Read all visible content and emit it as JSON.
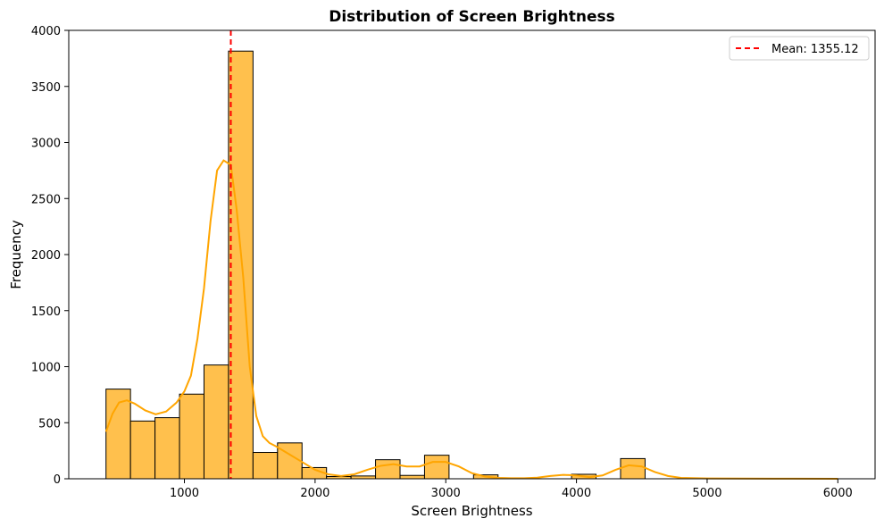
{
  "chart_data": {
    "type": "bar",
    "title": "Distribution of Screen Brightness",
    "xlabel": "Screen Brightness",
    "ylabel": "Frequency",
    "xlim": [
      115,
      6285
    ],
    "ylim": [
      0,
      4000
    ],
    "xticks": [
      1000,
      2000,
      3000,
      4000,
      5000,
      6000
    ],
    "yticks": [
      0,
      500,
      1000,
      1500,
      2000,
      2500,
      3000,
      3500,
      4000
    ],
    "bin_width": 187.5,
    "bins": [
      {
        "x0": 400,
        "value": 800
      },
      {
        "x0": 587.5,
        "value": 515
      },
      {
        "x0": 775,
        "value": 545
      },
      {
        "x0": 962.5,
        "value": 755
      },
      {
        "x0": 1150,
        "value": 1015
      },
      {
        "x0": 1337.5,
        "value": 3815
      },
      {
        "x0": 1525,
        "value": 235
      },
      {
        "x0": 1712.5,
        "value": 320
      },
      {
        "x0": 1900,
        "value": 100
      },
      {
        "x0": 2087.5,
        "value": 20
      },
      {
        "x0": 2275,
        "value": 25
      },
      {
        "x0": 2462.5,
        "value": 170
      },
      {
        "x0": 2650,
        "value": 30
      },
      {
        "x0": 2837.5,
        "value": 210
      },
      {
        "x0": 3025,
        "value": 0
      },
      {
        "x0": 3212.5,
        "value": 35
      },
      {
        "x0": 3400,
        "value": 0
      },
      {
        "x0": 3587.5,
        "value": 0
      },
      {
        "x0": 3775,
        "value": 0
      },
      {
        "x0": 3962.5,
        "value": 40
      },
      {
        "x0": 4150,
        "value": 0
      },
      {
        "x0": 4337.5,
        "value": 180
      }
    ],
    "kde": [
      [
        400,
        420
      ],
      [
        450,
        580
      ],
      [
        500,
        680
      ],
      [
        560,
        700
      ],
      [
        620,
        670
      ],
      [
        700,
        610
      ],
      [
        780,
        575
      ],
      [
        860,
        600
      ],
      [
        940,
        680
      ],
      [
        1000,
        780
      ],
      [
        1050,
        920
      ],
      [
        1100,
        1250
      ],
      [
        1150,
        1700
      ],
      [
        1200,
        2300
      ],
      [
        1250,
        2750
      ],
      [
        1300,
        2840
      ],
      [
        1355,
        2800
      ],
      [
        1400,
        2400
      ],
      [
        1450,
        1800
      ],
      [
        1500,
        1000
      ],
      [
        1550,
        560
      ],
      [
        1600,
        380
      ],
      [
        1650,
        320
      ],
      [
        1700,
        290
      ],
      [
        1800,
        220
      ],
      [
        1900,
        150
      ],
      [
        2000,
        80
      ],
      [
        2100,
        40
      ],
      [
        2200,
        25
      ],
      [
        2300,
        40
      ],
      [
        2400,
        80
      ],
      [
        2500,
        115
      ],
      [
        2600,
        130
      ],
      [
        2700,
        110
      ],
      [
        2800,
        110
      ],
      [
        2900,
        150
      ],
      [
        3000,
        150
      ],
      [
        3100,
        110
      ],
      [
        3200,
        50
      ],
      [
        3300,
        20
      ],
      [
        3400,
        8
      ],
      [
        3500,
        5
      ],
      [
        3600,
        5
      ],
      [
        3700,
        10
      ],
      [
        3800,
        25
      ],
      [
        3900,
        35
      ],
      [
        4000,
        30
      ],
      [
        4100,
        15
      ],
      [
        4200,
        30
      ],
      [
        4300,
        80
      ],
      [
        4400,
        120
      ],
      [
        4500,
        110
      ],
      [
        4600,
        60
      ],
      [
        4700,
        25
      ],
      [
        4800,
        8
      ],
      [
        5000,
        3
      ],
      [
        5500,
        1
      ],
      [
        6000,
        0
      ]
    ],
    "mean_line": {
      "value": 1355.12,
      "label": "Mean: 1355.12",
      "color": "#ff0000"
    },
    "bar_color": "#ffc04d",
    "kde_color": "#ffa500",
    "edge_color": "#000000",
    "grid": false,
    "legend_position": "top-right"
  }
}
